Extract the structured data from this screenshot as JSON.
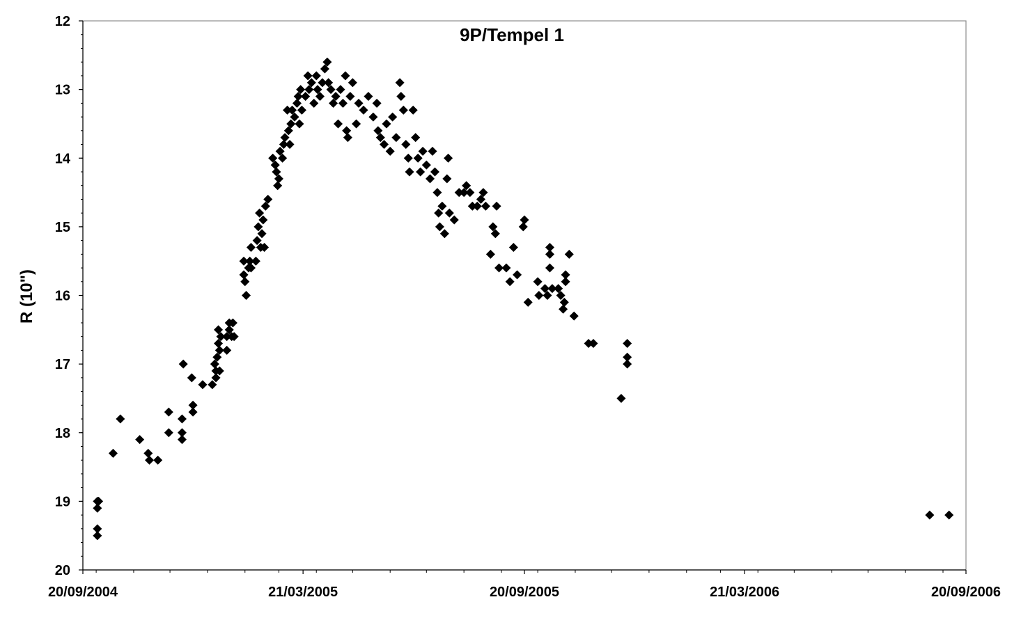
{
  "chart_data": {
    "type": "scatter",
    "title": "9P/Tempel 1",
    "xlabel": "",
    "ylabel": "R (10\")",
    "x_is_date": true,
    "xlim": [
      "2004-09-20",
      "2006-09-20"
    ],
    "ylim": [
      12,
      20
    ],
    "y_inverted": true,
    "grid": false,
    "legend": "none",
    "marker": "diamond",
    "marker_color": "#000000",
    "xticks": [
      {
        "date": "2004-09-20",
        "label": "20/09/2004"
      },
      {
        "date": "2005-03-21",
        "label": "21/03/2005"
      },
      {
        "date": "2005-09-20",
        "label": "20/09/2005"
      },
      {
        "date": "2006-03-21",
        "label": "21/03/2006"
      },
      {
        "date": "2006-09-20",
        "label": "20/09/2006"
      }
    ],
    "yticks": [
      12,
      13,
      14,
      15,
      16,
      17,
      18,
      19,
      20
    ],
    "series": [
      {
        "points": [
          [
            "2004-10-02",
            19.0
          ],
          [
            "2004-10-02",
            19.1
          ],
          [
            "2004-10-02",
            19.4
          ],
          [
            "2004-10-02",
            19.5
          ],
          [
            "2004-10-03",
            19.0
          ],
          [
            "2004-10-15",
            18.3
          ],
          [
            "2004-10-21",
            17.8
          ],
          [
            "2004-11-06",
            18.1
          ],
          [
            "2004-11-13",
            18.3
          ],
          [
            "2004-11-14",
            18.4
          ],
          [
            "2004-11-21",
            18.4
          ],
          [
            "2004-11-30",
            17.7
          ],
          [
            "2004-11-30",
            18.0
          ],
          [
            "2004-12-11",
            17.8
          ],
          [
            "2004-12-11",
            18.0
          ],
          [
            "2004-12-11",
            18.1
          ],
          [
            "2004-12-12",
            17.0
          ],
          [
            "2004-12-19",
            17.2
          ],
          [
            "2004-12-20",
            17.6
          ],
          [
            "2004-12-20",
            17.7
          ],
          [
            "2004-12-28",
            17.3
          ],
          [
            "2005-01-05",
            17.3
          ],
          [
            "2005-01-07",
            17.0
          ],
          [
            "2005-01-08",
            17.1
          ],
          [
            "2005-01-08",
            17.2
          ],
          [
            "2005-01-09",
            16.9
          ],
          [
            "2005-01-10",
            16.5
          ],
          [
            "2005-01-10",
            16.7
          ],
          [
            "2005-01-11",
            16.8
          ],
          [
            "2005-01-11",
            17.1
          ],
          [
            "2005-01-12",
            16.6
          ],
          [
            "2005-01-17",
            16.6
          ],
          [
            "2005-01-17",
            16.8
          ],
          [
            "2005-01-19",
            16.4
          ],
          [
            "2005-01-19",
            16.5
          ],
          [
            "2005-01-21",
            16.6
          ],
          [
            "2005-01-22",
            16.4
          ],
          [
            "2005-01-23",
            16.6
          ],
          [
            "2005-01-31",
            15.7
          ],
          [
            "2005-01-31",
            15.5
          ],
          [
            "2005-02-01",
            15.8
          ],
          [
            "2005-02-02",
            16.0
          ],
          [
            "2005-02-04",
            15.6
          ],
          [
            "2005-02-05",
            15.5
          ],
          [
            "2005-02-06",
            15.6
          ],
          [
            "2005-02-06",
            15.3
          ],
          [
            "2005-02-10",
            15.5
          ],
          [
            "2005-02-11",
            15.2
          ],
          [
            "2005-02-12",
            15.0
          ],
          [
            "2005-02-13",
            14.8
          ],
          [
            "2005-02-14",
            15.3
          ],
          [
            "2005-02-15",
            15.1
          ],
          [
            "2005-02-16",
            14.9
          ],
          [
            "2005-02-17",
            15.3
          ],
          [
            "2005-02-18",
            14.7
          ],
          [
            "2005-02-20",
            14.6
          ],
          [
            "2005-02-24",
            14.0
          ],
          [
            "2005-02-26",
            14.1
          ],
          [
            "2005-02-27",
            14.2
          ],
          [
            "2005-02-28",
            14.4
          ],
          [
            "2005-03-01",
            14.3
          ],
          [
            "2005-03-02",
            13.9
          ],
          [
            "2005-03-04",
            14.0
          ],
          [
            "2005-03-05",
            13.8
          ],
          [
            "2005-03-06",
            13.7
          ],
          [
            "2005-03-08",
            13.3
          ],
          [
            "2005-03-09",
            13.6
          ],
          [
            "2005-03-10",
            13.8
          ],
          [
            "2005-03-11",
            13.5
          ],
          [
            "2005-03-12",
            13.3
          ],
          [
            "2005-03-14",
            13.4
          ],
          [
            "2005-03-16",
            13.2
          ],
          [
            "2005-03-17",
            13.1
          ],
          [
            "2005-03-18",
            13.5
          ],
          [
            "2005-03-19",
            13.0
          ],
          [
            "2005-03-20",
            13.3
          ],
          [
            "2005-03-23",
            13.1
          ],
          [
            "2005-03-25",
            12.8
          ],
          [
            "2005-03-26",
            13.0
          ],
          [
            "2005-03-28",
            12.9
          ],
          [
            "2005-03-30",
            13.2
          ],
          [
            "2005-04-01",
            12.8
          ],
          [
            "2005-04-02",
            13.0
          ],
          [
            "2005-04-04",
            13.1
          ],
          [
            "2005-04-06",
            12.9
          ],
          [
            "2005-04-08",
            12.7
          ],
          [
            "2005-04-10",
            12.6
          ],
          [
            "2005-04-11",
            12.9
          ],
          [
            "2005-04-13",
            13.0
          ],
          [
            "2005-04-15",
            13.2
          ],
          [
            "2005-04-17",
            13.1
          ],
          [
            "2005-04-19",
            13.5
          ],
          [
            "2005-04-21",
            13.0
          ],
          [
            "2005-04-23",
            13.2
          ],
          [
            "2005-04-25",
            12.8
          ],
          [
            "2005-04-26",
            13.6
          ],
          [
            "2005-04-27",
            13.7
          ],
          [
            "2005-04-29",
            13.1
          ],
          [
            "2005-05-01",
            12.9
          ],
          [
            "2005-05-04",
            13.5
          ],
          [
            "2005-05-06",
            13.2
          ],
          [
            "2005-05-10",
            13.3
          ],
          [
            "2005-05-14",
            13.1
          ],
          [
            "2005-05-18",
            13.4
          ],
          [
            "2005-05-21",
            13.2
          ],
          [
            "2005-05-22",
            13.6
          ],
          [
            "2005-05-24",
            13.7
          ],
          [
            "2005-05-27",
            13.8
          ],
          [
            "2005-05-29",
            13.5
          ],
          [
            "2005-06-01",
            13.9
          ],
          [
            "2005-06-03",
            13.4
          ],
          [
            "2005-06-06",
            13.7
          ],
          [
            "2005-06-09",
            12.9
          ],
          [
            "2005-06-10",
            13.1
          ],
          [
            "2005-06-12",
            13.3
          ],
          [
            "2005-06-14",
            13.8
          ],
          [
            "2005-06-16",
            14.0
          ],
          [
            "2005-06-17",
            14.2
          ],
          [
            "2005-06-20",
            13.3
          ],
          [
            "2005-06-22",
            13.7
          ],
          [
            "2005-06-24",
            14.0
          ],
          [
            "2005-06-26",
            14.2
          ],
          [
            "2005-06-28",
            13.9
          ],
          [
            "2005-07-01",
            14.1
          ],
          [
            "2005-07-04",
            14.3
          ],
          [
            "2005-07-06",
            13.9
          ],
          [
            "2005-07-08",
            14.2
          ],
          [
            "2005-07-10",
            14.5
          ],
          [
            "2005-07-11",
            14.8
          ],
          [
            "2005-07-12",
            15.0
          ],
          [
            "2005-07-14",
            14.7
          ],
          [
            "2005-07-16",
            15.1
          ],
          [
            "2005-07-18",
            14.3
          ],
          [
            "2005-07-19",
            14.0
          ],
          [
            "2005-07-20",
            14.8
          ],
          [
            "2005-07-24",
            14.9
          ],
          [
            "2005-07-28",
            14.5
          ],
          [
            "2005-08-01",
            14.5
          ],
          [
            "2005-08-03",
            14.4
          ],
          [
            "2005-08-06",
            14.5
          ],
          [
            "2005-08-08",
            14.7
          ],
          [
            "2005-08-12",
            14.7
          ],
          [
            "2005-08-15",
            14.6
          ],
          [
            "2005-08-17",
            14.5
          ],
          [
            "2005-08-19",
            14.7
          ],
          [
            "2005-08-23",
            15.4
          ],
          [
            "2005-08-25",
            15.0
          ],
          [
            "2005-08-27",
            15.1
          ],
          [
            "2005-08-28",
            14.7
          ],
          [
            "2005-08-30",
            15.6
          ],
          [
            "2005-09-05",
            15.6
          ],
          [
            "2005-09-08",
            15.8
          ],
          [
            "2005-09-11",
            15.3
          ],
          [
            "2005-09-14",
            15.7
          ],
          [
            "2005-09-19",
            15.0
          ],
          [
            "2005-09-20",
            14.9
          ],
          [
            "2005-09-23",
            16.1
          ],
          [
            "2005-10-01",
            15.8
          ],
          [
            "2005-10-02",
            16.0
          ],
          [
            "2005-10-07",
            15.9
          ],
          [
            "2005-10-09",
            16.0
          ],
          [
            "2005-10-11",
            15.3
          ],
          [
            "2005-10-11",
            15.4
          ],
          [
            "2005-10-11",
            15.6
          ],
          [
            "2005-10-13",
            15.9
          ],
          [
            "2005-10-18",
            15.9
          ],
          [
            "2005-10-20",
            16.0
          ],
          [
            "2005-10-22",
            16.2
          ],
          [
            "2005-10-23",
            16.1
          ],
          [
            "2005-10-24",
            15.7
          ],
          [
            "2005-10-24",
            15.8
          ],
          [
            "2005-10-27",
            15.4
          ],
          [
            "2005-10-31",
            16.3
          ],
          [
            "2005-11-12",
            16.7
          ],
          [
            "2005-11-16",
            16.7
          ],
          [
            "2005-12-09",
            17.5
          ],
          [
            "2005-12-14",
            16.7
          ],
          [
            "2005-12-14",
            16.9
          ],
          [
            "2005-12-14",
            17.0
          ],
          [
            "2006-08-21",
            19.2
          ],
          [
            "2006-09-06",
            19.2
          ]
        ]
      }
    ]
  }
}
